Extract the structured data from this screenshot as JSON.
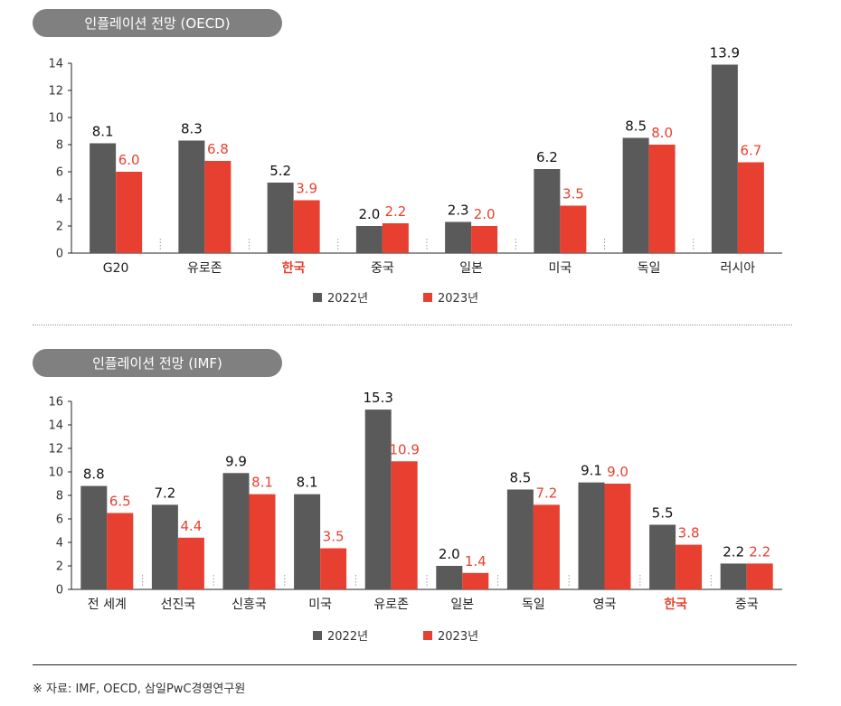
{
  "source_note": "※ 자료: IMF, OECD, 삼일PwC경영연구원",
  "colors": {
    "series_2022": "#5a5a5a",
    "series_2023": "#e84030",
    "highlight_label": "#e84030",
    "pill_bg": "#808080"
  },
  "chart_data": [
    {
      "type": "bar",
      "title": "인플레이션 전망 (OECD)",
      "categories": [
        "G20",
        "유로존",
        "한국",
        "중국",
        "일본",
        "미국",
        "독일",
        "러시아"
      ],
      "highlight_category": "한국",
      "series": [
        {
          "name": "2022년",
          "values": [
            8.1,
            8.3,
            5.2,
            2.0,
            2.3,
            6.2,
            8.5,
            13.9
          ]
        },
        {
          "name": "2023년",
          "values": [
            6.0,
            6.8,
            3.9,
            2.2,
            2.0,
            3.5,
            8.0,
            6.7
          ]
        }
      ],
      "ylim": [
        0,
        14
      ],
      "yticks": [
        0,
        2,
        4,
        6,
        8,
        10,
        12,
        14
      ],
      "grid": false,
      "legend_position": "bottom-center"
    },
    {
      "type": "bar",
      "title": "인플레이션 전망 (IMF)",
      "categories": [
        "전 세계",
        "선진국",
        "신흥국",
        "미국",
        "유로존",
        "일본",
        "독일",
        "영국",
        "한국",
        "중국"
      ],
      "highlight_category": "한국",
      "series": [
        {
          "name": "2022년",
          "values": [
            8.8,
            7.2,
            9.9,
            8.1,
            15.3,
            2.0,
            8.5,
            9.1,
            5.5,
            2.2
          ]
        },
        {
          "name": "2023년",
          "values": [
            6.5,
            4.4,
            8.1,
            3.5,
            10.9,
            1.4,
            7.2,
            9.0,
            3.8,
            2.2
          ]
        }
      ],
      "ylim": [
        0,
        16
      ],
      "yticks": [
        0,
        2,
        4,
        6,
        8,
        10,
        12,
        14,
        16
      ],
      "grid": false,
      "legend_position": "bottom-center"
    }
  ]
}
